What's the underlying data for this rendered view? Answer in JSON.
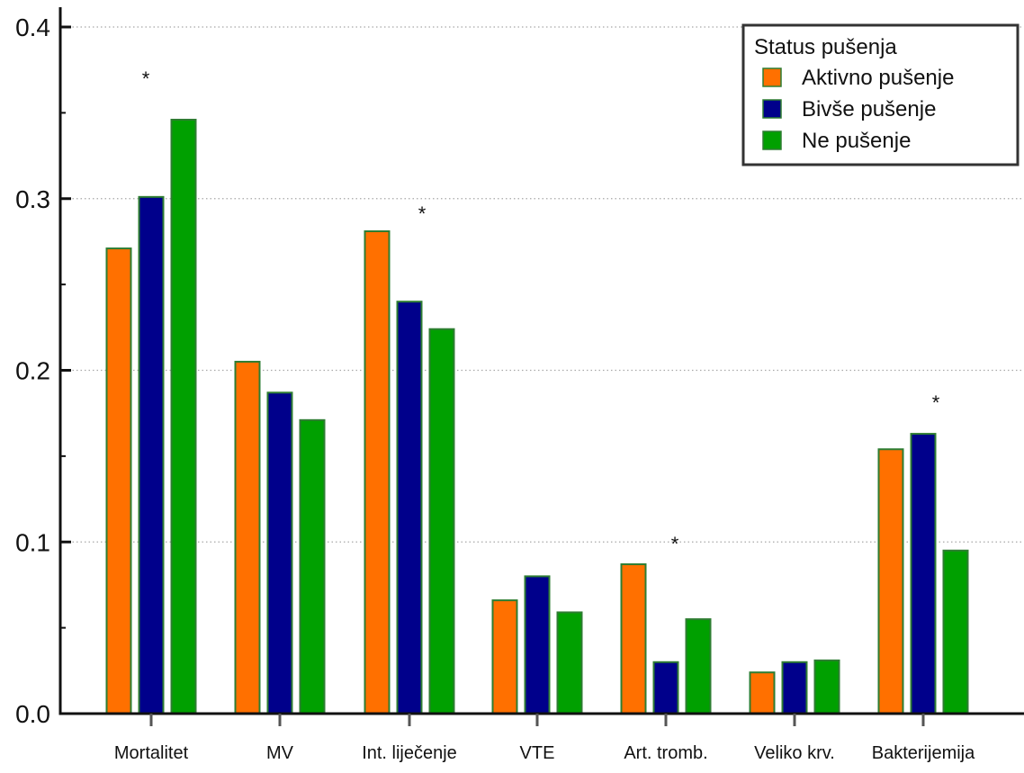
{
  "chart_data": {
    "type": "bar",
    "categories": [
      "Mortalitet",
      "MV",
      "Int. liječenje",
      "VTE",
      "Art. tromb.",
      "Veliko krv.",
      "Bakterijemija"
    ],
    "series": [
      {
        "name": "Aktivno pušenje",
        "color": "#ff7000",
        "values": [
          0.271,
          0.205,
          0.281,
          0.066,
          0.087,
          0.024,
          0.154
        ]
      },
      {
        "name": "Bivše pušenje",
        "color": "#00008b",
        "values": [
          0.301,
          0.187,
          0.24,
          0.08,
          0.03,
          0.03,
          0.163
        ]
      },
      {
        "name": "Ne pušenje",
        "color": "#00a000",
        "values": [
          0.346,
          0.171,
          0.224,
          0.059,
          0.055,
          0.031,
          0.095
        ]
      }
    ],
    "bar_border_color": "#2e7d32",
    "annotations": [
      {
        "category": "Mortalitet",
        "text": "*"
      },
      {
        "category": "Int. liječenje",
        "text": "*"
      },
      {
        "category": "Art. tromb.",
        "text": "*"
      },
      {
        "category": "Bakterijemija",
        "text": "*"
      }
    ],
    "ylim": [
      0,
      0.4
    ],
    "yticks": [
      0.0,
      0.1,
      0.2,
      0.3,
      0.4
    ],
    "ytick_labels": [
      "0.0",
      "0.1",
      "0.2",
      "0.3",
      "0.4"
    ],
    "grid": "horizontal dotted",
    "legend": {
      "title": "Status pušenja",
      "placement": "top-right"
    },
    "title": "",
    "xlabel": "",
    "ylabel": ""
  }
}
